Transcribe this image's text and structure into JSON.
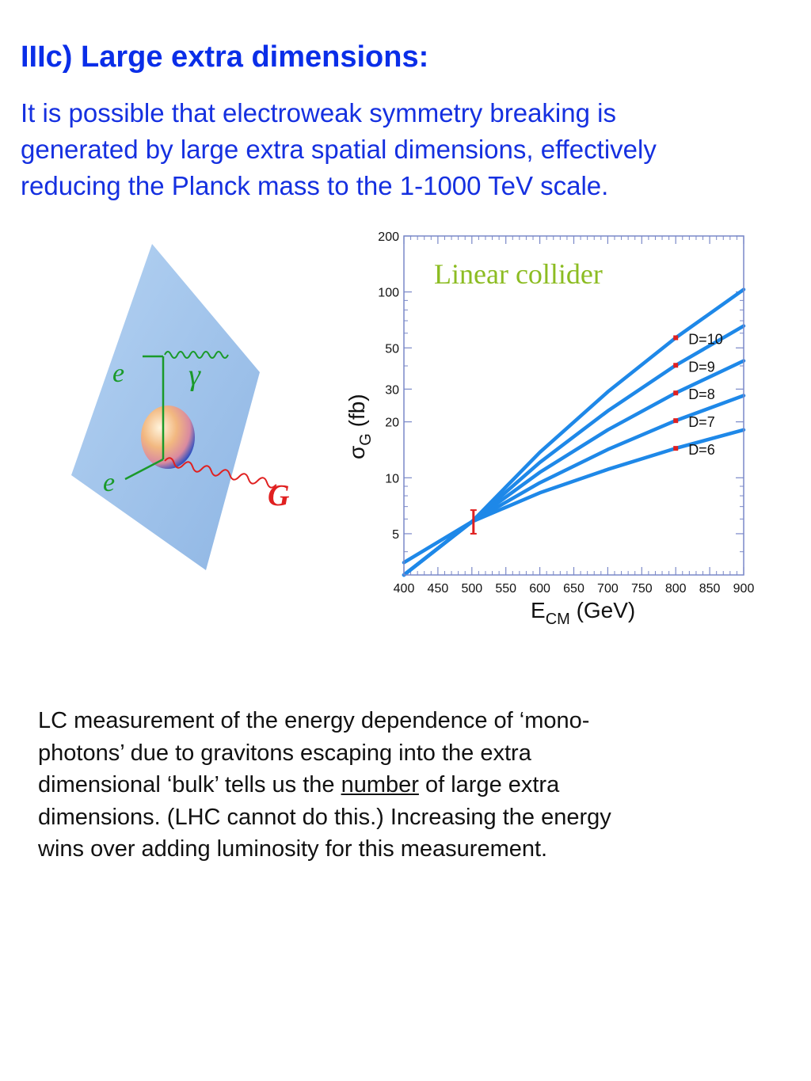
{
  "slide": {
    "title": "IIIc) Large extra dimensions:",
    "intro_lines": [
      "It is possible that electroweak symmetry breaking is",
      "generated by large extra spatial dimensions, effectively",
      "reducing the Planck mass to the 1-1000 TeV scale."
    ],
    "caption": {
      "line1": "LC measurement of the energy dependence of ‘mono-",
      "line2": "photons’ due to gravitons escaping into the extra",
      "line3_before": "dimensional ‘bulk’  tells us the ",
      "line3_underlined": "number",
      "line3_after": " of large extra",
      "line4": "dimensions. (LHC cannot do this.)  Increasing the energy",
      "line5": "wins over adding luminosity for this measurement."
    }
  },
  "diagram": {
    "label_e_top": "e",
    "label_e_bottom": "e",
    "label_gamma": "γ",
    "label_graviton": "G",
    "colors": {
      "brane": "#9dc1ea",
      "electron_line": "#1a9a2a",
      "graviton": "#e02020",
      "photon": "#1a9a2a"
    }
  },
  "chart_data": {
    "type": "line",
    "annotation": "Linear collider",
    "xlabel_main": "E",
    "xlabel_sub": "CM",
    "xlabel_unit": " (GeV)",
    "ylabel_main": "σ",
    "ylabel_sub": "G",
    "ylabel_unit": " (fb)",
    "xlim": [
      400,
      900
    ],
    "ylim": [
      3,
      200
    ],
    "yscale": "log",
    "x_ticks": [
      400,
      450,
      500,
      550,
      600,
      650,
      700,
      750,
      800,
      850,
      900
    ],
    "y_ticks": [
      5,
      10,
      20,
      30,
      50,
      100,
      200
    ],
    "line_color": "#1e88e8",
    "marker_color": "#e02020",
    "series": [
      {
        "name": "D=6",
        "x": [
          400,
          500,
          600,
          700,
          800,
          900
        ],
        "y": [
          3.5,
          5.8,
          8.3,
          11.1,
          14.4,
          18.1
        ]
      },
      {
        "name": "D=7",
        "x": [
          400,
          500,
          600,
          700,
          800,
          900
        ],
        "y": [
          3.0,
          5.8,
          9.4,
          14.2,
          20.3,
          27.7
        ]
      },
      {
        "name": "D=8",
        "x": [
          400,
          500,
          600,
          700,
          800,
          900
        ],
        "y": [
          2.6,
          5.8,
          10.7,
          18.1,
          28.6,
          42.6
        ]
      },
      {
        "name": "D=9",
        "x": [
          400,
          500,
          600,
          700,
          800,
          900
        ],
        "y": [
          2.3,
          5.8,
          12.1,
          22.9,
          40.3,
          65.6
        ]
      },
      {
        "name": "D=10",
        "x": [
          400,
          500,
          600,
          700,
          800,
          900
        ],
        "y": [
          2.0,
          5.8,
          13.7,
          29.0,
          56.7,
          103
        ]
      }
    ],
    "markers": [
      {
        "x": 800,
        "y": 14.4
      },
      {
        "x": 800,
        "y": 20.3
      },
      {
        "x": 800,
        "y": 28.6
      },
      {
        "x": 800,
        "y": 40.3
      },
      {
        "x": 800,
        "y": 56.7
      }
    ],
    "error_bar": {
      "x": 500,
      "y": 5.8,
      "low": 5.0,
      "high": 6.7
    }
  }
}
